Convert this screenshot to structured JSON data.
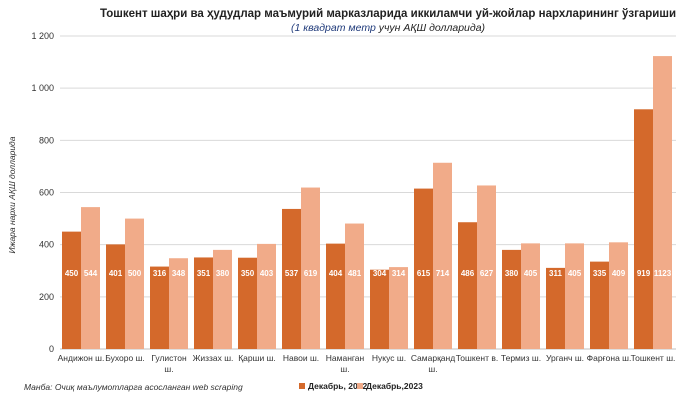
{
  "chart_data": {
    "type": "bar",
    "title": "Тошкент шаҳри ва ҳудудлар маъмурий марказларида иккиламчи уй-жойлар нархларининг ўзгариши",
    "subtitle_prefix": "(1 квадрат метр",
    "subtitle_suffix": " учун АҚШ долларида)",
    "ylabel": "Ижара нархи АҚШ долларида",
    "source": "Манба: Очиқ маълумотларга асосланган web scraping",
    "ylim": [
      0,
      1200
    ],
    "yticks": [
      "0",
      "200",
      "400",
      "600",
      "800",
      "1 000",
      "1 200"
    ],
    "ytick_values": [
      0,
      200,
      400,
      600,
      800,
      1000,
      1200
    ],
    "grid": true,
    "legend_position": "bottom",
    "categories": [
      "Андижон ш.",
      "Бухоро ш.",
      "Гулистон ш.",
      "Жиззах ш.",
      "Қарши ш.",
      "Навои ш.",
      "Наманган ш.",
      "Нукус ш.",
      "Самарқанд ш.",
      "Тошкент в.",
      "Термиз ш.",
      "Урганч ш.",
      "Фарғона ш.",
      "Тошкент ш."
    ],
    "series": [
      {
        "name": "Декабрь, 2022",
        "color": "#d4692b",
        "values": [
          450,
          401,
          316,
          351,
          350,
          537,
          404,
          304,
          615,
          486,
          380,
          311,
          335,
          919
        ]
      },
      {
        "name": "Декабрь,2023",
        "color": "#f1ab89",
        "values": [
          544,
          500,
          348,
          380,
          403,
          619,
          481,
          314,
          714,
          627,
          405,
          405,
          409,
          1123
        ]
      }
    ]
  }
}
